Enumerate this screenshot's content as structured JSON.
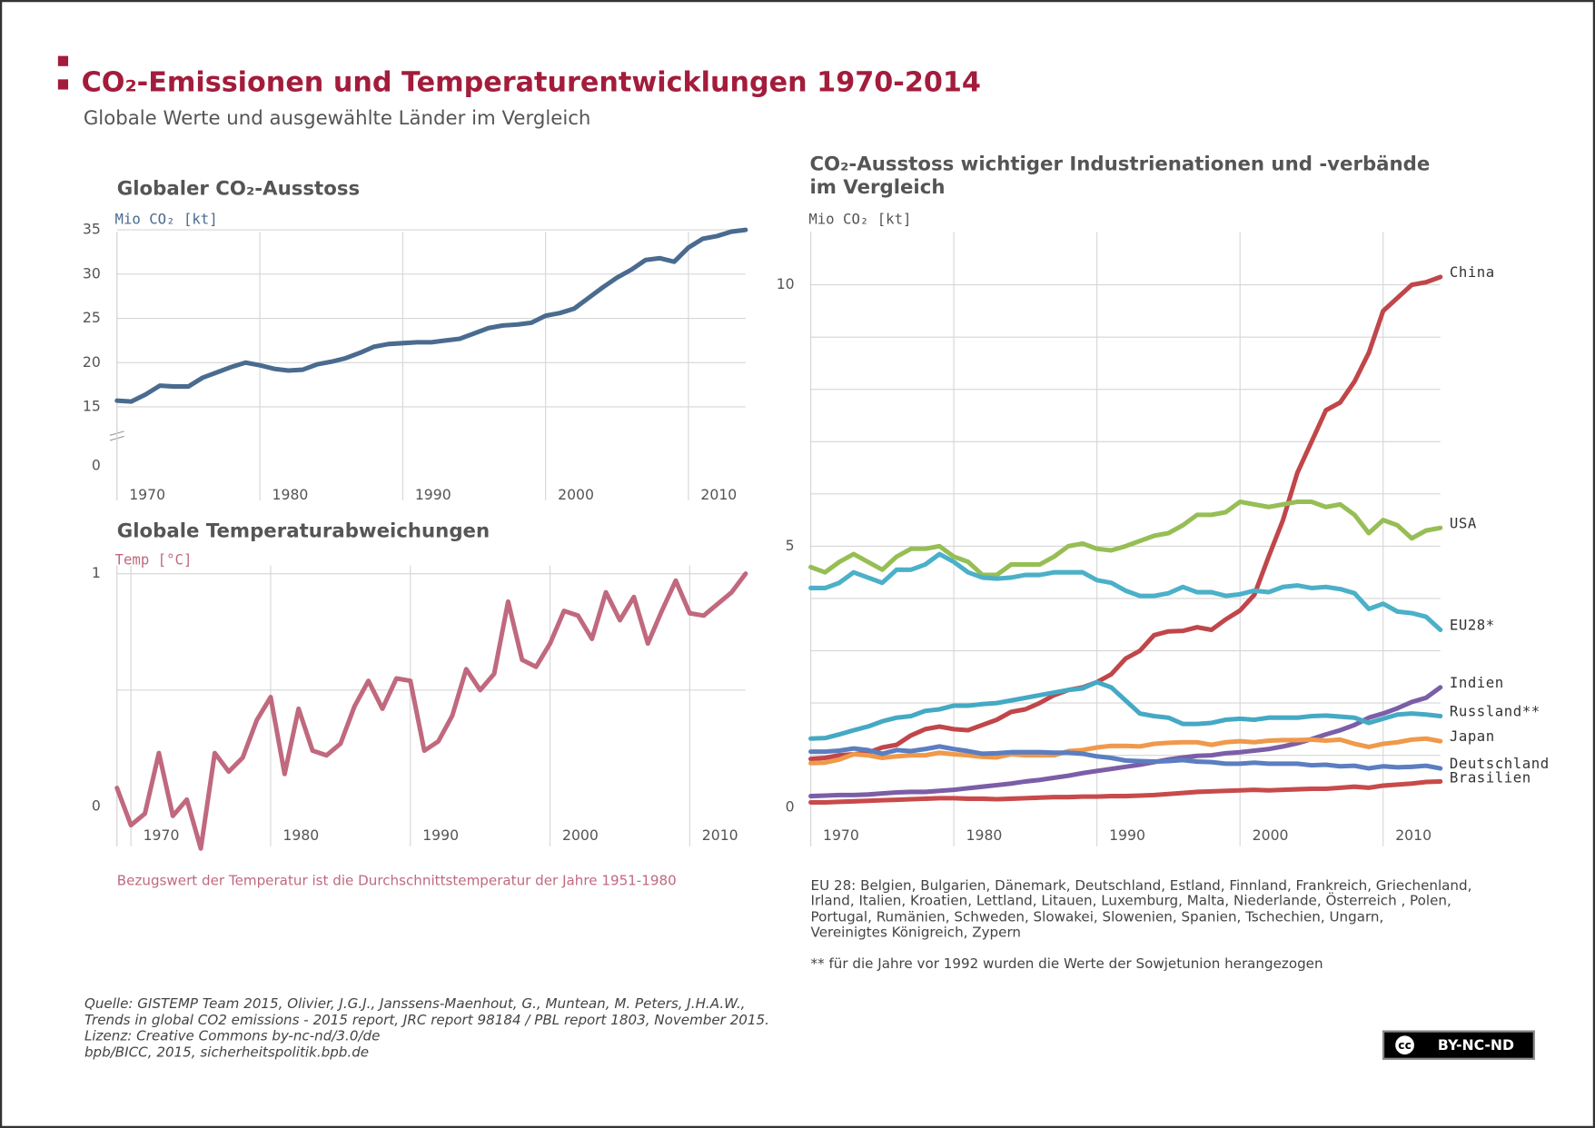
{
  "header": {
    "title": "CO₂-Emissionen und Temperaturentwicklungen 1970-2014",
    "subtitle": "Globale Werte und ausgewählte Länder im Vergleich"
  },
  "chart_data": [
    {
      "type": "line",
      "title": "Globaler CO₂-Ausstoss",
      "y_label": "Mio  CO₂ [kt]",
      "color": "#4a6b8f",
      "x": [
        1970,
        1971,
        1972,
        1973,
        1974,
        1975,
        1976,
        1977,
        1978,
        1979,
        1980,
        1981,
        1982,
        1983,
        1984,
        1985,
        1986,
        1987,
        1988,
        1989,
        1990,
        1991,
        1992,
        1993,
        1994,
        1995,
        1996,
        1997,
        1998,
        1999,
        2000,
        2001,
        2002,
        2003,
        2004,
        2005,
        2006,
        2007,
        2008,
        2009,
        2010,
        2011,
        2012,
        2013,
        2014
      ],
      "values": [
        15.7,
        15.6,
        16.4,
        17.4,
        17.3,
        17.3,
        18.3,
        18.9,
        19.5,
        20.0,
        19.7,
        19.3,
        19.1,
        19.2,
        19.8,
        20.1,
        20.5,
        21.1,
        21.8,
        22.1,
        22.2,
        22.3,
        22.3,
        22.5,
        22.7,
        23.3,
        23.9,
        24.2,
        24.3,
        24.5,
        25.3,
        25.6,
        26.1,
        27.3,
        28.5,
        29.6,
        30.5,
        31.6,
        31.8,
        31.4,
        33.0,
        34.0,
        34.3,
        34.8,
        35.0
      ],
      "xlim": [
        1970,
        2014
      ],
      "xticks": [
        1970,
        1980,
        1990,
        2000,
        2010
      ],
      "ylim": [
        0,
        35
      ],
      "axis_break": [
        0,
        15
      ],
      "yticks": [
        0,
        15,
        20,
        25,
        30,
        35
      ],
      "gridlines": [
        15,
        20,
        25,
        30,
        35
      ]
    },
    {
      "type": "line",
      "title": "Globale Temperaturabweichungen",
      "y_label": "Temp [°C]",
      "color": "#c0697e",
      "note": "Bezugswert der Temperatur ist die Durchschnittstemperatur der Jahre 1951-1980",
      "x": [
        1969,
        1970,
        1971,
        1972,
        1973,
        1974,
        1975,
        1976,
        1977,
        1978,
        1979,
        1980,
        1981,
        1982,
        1983,
        1984,
        1985,
        1986,
        1987,
        1988,
        1989,
        1990,
        1991,
        1992,
        1993,
        1994,
        1995,
        1996,
        1997,
        1998,
        1999,
        2000,
        2001,
        2002,
        2003,
        2004,
        2005,
        2006,
        2007,
        2008,
        2009,
        2010,
        2011,
        2012,
        2013,
        2014
      ],
      "values": [
        0.08,
        -0.08,
        -0.03,
        0.23,
        -0.04,
        0.03,
        -0.18,
        0.23,
        0.15,
        0.21,
        0.37,
        0.47,
        0.14,
        0.42,
        0.24,
        0.22,
        0.27,
        0.43,
        0.54,
        0.42,
        0.55,
        0.54,
        0.24,
        0.28,
        0.39,
        0.59,
        0.5,
        0.57,
        0.88,
        0.63,
        0.6,
        0.7,
        0.84,
        0.82,
        0.72,
        0.92,
        0.8,
        0.9,
        0.7,
        0.84,
        0.97,
        0.83,
        0.82,
        0.87,
        0.92,
        1.0
      ],
      "xlim": [
        1969,
        2014
      ],
      "xticks": [
        1970,
        1980,
        1990,
        2000,
        2010
      ],
      "ylim": [
        -0.2,
        1.05
      ],
      "yticks": [
        0,
        1
      ],
      "gridlines": [
        0.5,
        1
      ]
    },
    {
      "type": "line",
      "title": [
        "CO₂-Ausstoss wichtiger Industrienationen und -verbände",
        "im Vergleich"
      ],
      "y_label": "Mio  CO₂ [kt]",
      "x": [
        1970,
        1971,
        1972,
        1973,
        1974,
        1975,
        1976,
        1977,
        1978,
        1979,
        1980,
        1981,
        1982,
        1983,
        1984,
        1985,
        1986,
        1987,
        1988,
        1989,
        1990,
        1991,
        1992,
        1993,
        1994,
        1995,
        1996,
        1997,
        1998,
        1999,
        2000,
        2001,
        2002,
        2003,
        2004,
        2005,
        2006,
        2007,
        2008,
        2009,
        2010,
        2011,
        2012,
        2013,
        2014
      ],
      "series": [
        {
          "name": "China",
          "color": "#c0464a",
          "values": [
            0.93,
            0.95,
            1.0,
            1.02,
            1.05,
            1.15,
            1.2,
            1.38,
            1.5,
            1.55,
            1.5,
            1.48,
            1.58,
            1.68,
            1.83,
            1.88,
            2.0,
            2.15,
            2.25,
            2.3,
            2.4,
            2.55,
            2.85,
            3.0,
            3.3,
            3.37,
            3.38,
            3.45,
            3.4,
            3.6,
            3.77,
            4.07,
            4.8,
            5.5,
            6.4,
            7.0,
            7.6,
            7.75,
            8.15,
            8.7,
            9.5,
            9.75,
            10.0,
            10.05,
            10.15
          ]
        },
        {
          "name": "USA",
          "color": "#96be55",
          "values": [
            4.6,
            4.5,
            4.7,
            4.85,
            4.7,
            4.55,
            4.8,
            4.95,
            4.95,
            5.0,
            4.8,
            4.7,
            4.45,
            4.45,
            4.65,
            4.65,
            4.65,
            4.8,
            5.0,
            5.05,
            4.95,
            4.92,
            5.0,
            5.1,
            5.2,
            5.25,
            5.4,
            5.6,
            5.6,
            5.65,
            5.85,
            5.8,
            5.75,
            5.8,
            5.85,
            5.85,
            5.75,
            5.8,
            5.6,
            5.25,
            5.5,
            5.4,
            5.15,
            5.3,
            5.35
          ]
        },
        {
          "name": "EU28*",
          "color": "#4bb0c8",
          "values": [
            4.2,
            4.2,
            4.3,
            4.5,
            4.4,
            4.3,
            4.55,
            4.55,
            4.65,
            4.85,
            4.7,
            4.5,
            4.4,
            4.38,
            4.4,
            4.45,
            4.45,
            4.5,
            4.5,
            4.5,
            4.35,
            4.3,
            4.15,
            4.05,
            4.05,
            4.1,
            4.22,
            4.12,
            4.12,
            4.05,
            4.08,
            4.15,
            4.12,
            4.22,
            4.25,
            4.2,
            4.22,
            4.18,
            4.1,
            3.8,
            3.9,
            3.75,
            3.72,
            3.65,
            3.4
          ]
        },
        {
          "name": "Indien",
          "color": "#7b5ea7",
          "values": [
            0.22,
            0.23,
            0.24,
            0.24,
            0.25,
            0.27,
            0.29,
            0.3,
            0.3,
            0.32,
            0.34,
            0.37,
            0.4,
            0.43,
            0.46,
            0.5,
            0.53,
            0.57,
            0.61,
            0.66,
            0.7,
            0.74,
            0.78,
            0.82,
            0.87,
            0.92,
            0.96,
            0.99,
            1.0,
            1.04,
            1.06,
            1.09,
            1.12,
            1.17,
            1.23,
            1.31,
            1.4,
            1.48,
            1.58,
            1.72,
            1.8,
            1.9,
            2.02,
            2.1,
            2.3
          ]
        },
        {
          "name": "Russland**",
          "color": "#45a9c4",
          "values": [
            1.32,
            1.33,
            1.4,
            1.48,
            1.55,
            1.65,
            1.72,
            1.75,
            1.85,
            1.88,
            1.95,
            1.95,
            1.98,
            2.0,
            2.05,
            2.1,
            2.15,
            2.2,
            2.25,
            2.28,
            2.4,
            2.3,
            2.05,
            1.8,
            1.75,
            1.72,
            1.6,
            1.6,
            1.62,
            1.68,
            1.7,
            1.68,
            1.72,
            1.72,
            1.72,
            1.75,
            1.76,
            1.74,
            1.72,
            1.62,
            1.7,
            1.78,
            1.8,
            1.78,
            1.75
          ]
        },
        {
          "name": "Japan",
          "color": "#f0994a",
          "values": [
            0.85,
            0.86,
            0.92,
            1.02,
            1.0,
            0.95,
            0.98,
            1.0,
            1.0,
            1.05,
            1.02,
            1.0,
            0.97,
            0.96,
            1.02,
            1.0,
            1.0,
            1.0,
            1.08,
            1.1,
            1.15,
            1.18,
            1.18,
            1.17,
            1.22,
            1.24,
            1.25,
            1.25,
            1.2,
            1.25,
            1.27,
            1.25,
            1.28,
            1.29,
            1.29,
            1.3,
            1.28,
            1.3,
            1.22,
            1.16,
            1.22,
            1.25,
            1.3,
            1.32,
            1.27
          ]
        },
        {
          "name": "Deutschland",
          "color": "#5b7ec0",
          "values": [
            1.07,
            1.07,
            1.09,
            1.13,
            1.1,
            1.03,
            1.1,
            1.08,
            1.12,
            1.17,
            1.12,
            1.08,
            1.03,
            1.04,
            1.06,
            1.06,
            1.06,
            1.05,
            1.05,
            1.03,
            0.98,
            0.95,
            0.9,
            0.89,
            0.88,
            0.89,
            0.91,
            0.88,
            0.87,
            0.84,
            0.84,
            0.86,
            0.84,
            0.84,
            0.84,
            0.81,
            0.82,
            0.79,
            0.8,
            0.75,
            0.79,
            0.77,
            0.78,
            0.8,
            0.75
          ]
        },
        {
          "name": "Brasilien",
          "color": "#c84a4a",
          "values": [
            0.1,
            0.1,
            0.11,
            0.12,
            0.13,
            0.14,
            0.15,
            0.16,
            0.17,
            0.18,
            0.18,
            0.17,
            0.17,
            0.16,
            0.17,
            0.18,
            0.19,
            0.2,
            0.2,
            0.21,
            0.21,
            0.22,
            0.22,
            0.23,
            0.24,
            0.26,
            0.28,
            0.3,
            0.31,
            0.32,
            0.33,
            0.34,
            0.33,
            0.34,
            0.35,
            0.36,
            0.36,
            0.38,
            0.4,
            0.38,
            0.42,
            0.44,
            0.46,
            0.49,
            0.5
          ]
        }
      ],
      "xlim": [
        1970,
        2014
      ],
      "xticks": [
        1970,
        1980,
        1990,
        2000,
        2010
      ],
      "ylim": [
        0,
        11
      ],
      "yticks": [
        0,
        5,
        10
      ],
      "gridlines": [
        1,
        2,
        3,
        4,
        5,
        6,
        7,
        8,
        9,
        10
      ],
      "notes": [
        "EU 28: Belgien, Bulgarien, Dänemark, Deutschland, Estland, Finnland, Frankreich, Griechenland,",
        "Irland, Italien, Kroatien, Lettland, Litauen, Luxemburg, Malta, Niederlande, Österreich , Polen,",
        "Portugal, Rumänien, Schweden, Slowakei, Slowenien, Spanien, Tschechien, Ungarn,",
        "Vereinigtes Königreich, Zypern",
        "** für die Jahre vor 1992 wurden die Werte der Sowjetunion herangezogen"
      ]
    }
  ],
  "source": [
    "Quelle: GISTEMP Team 2015, Olivier, J.G.J., Janssens-Maenhout, G., Muntean, M. Peters, J.H.A.W.,",
    "Trends in global CO2 emissions - 2015 report, JRC report 98184 / PBL report 1803, November 2015.",
    "Lizenz: Creative Commons by-nc-nd/3.0/de",
    "bpb/BICC, 2015, sicherheitspolitik.bpb.de"
  ],
  "license_badge": {
    "icon": "cc",
    "text": "BY-NC-ND"
  }
}
